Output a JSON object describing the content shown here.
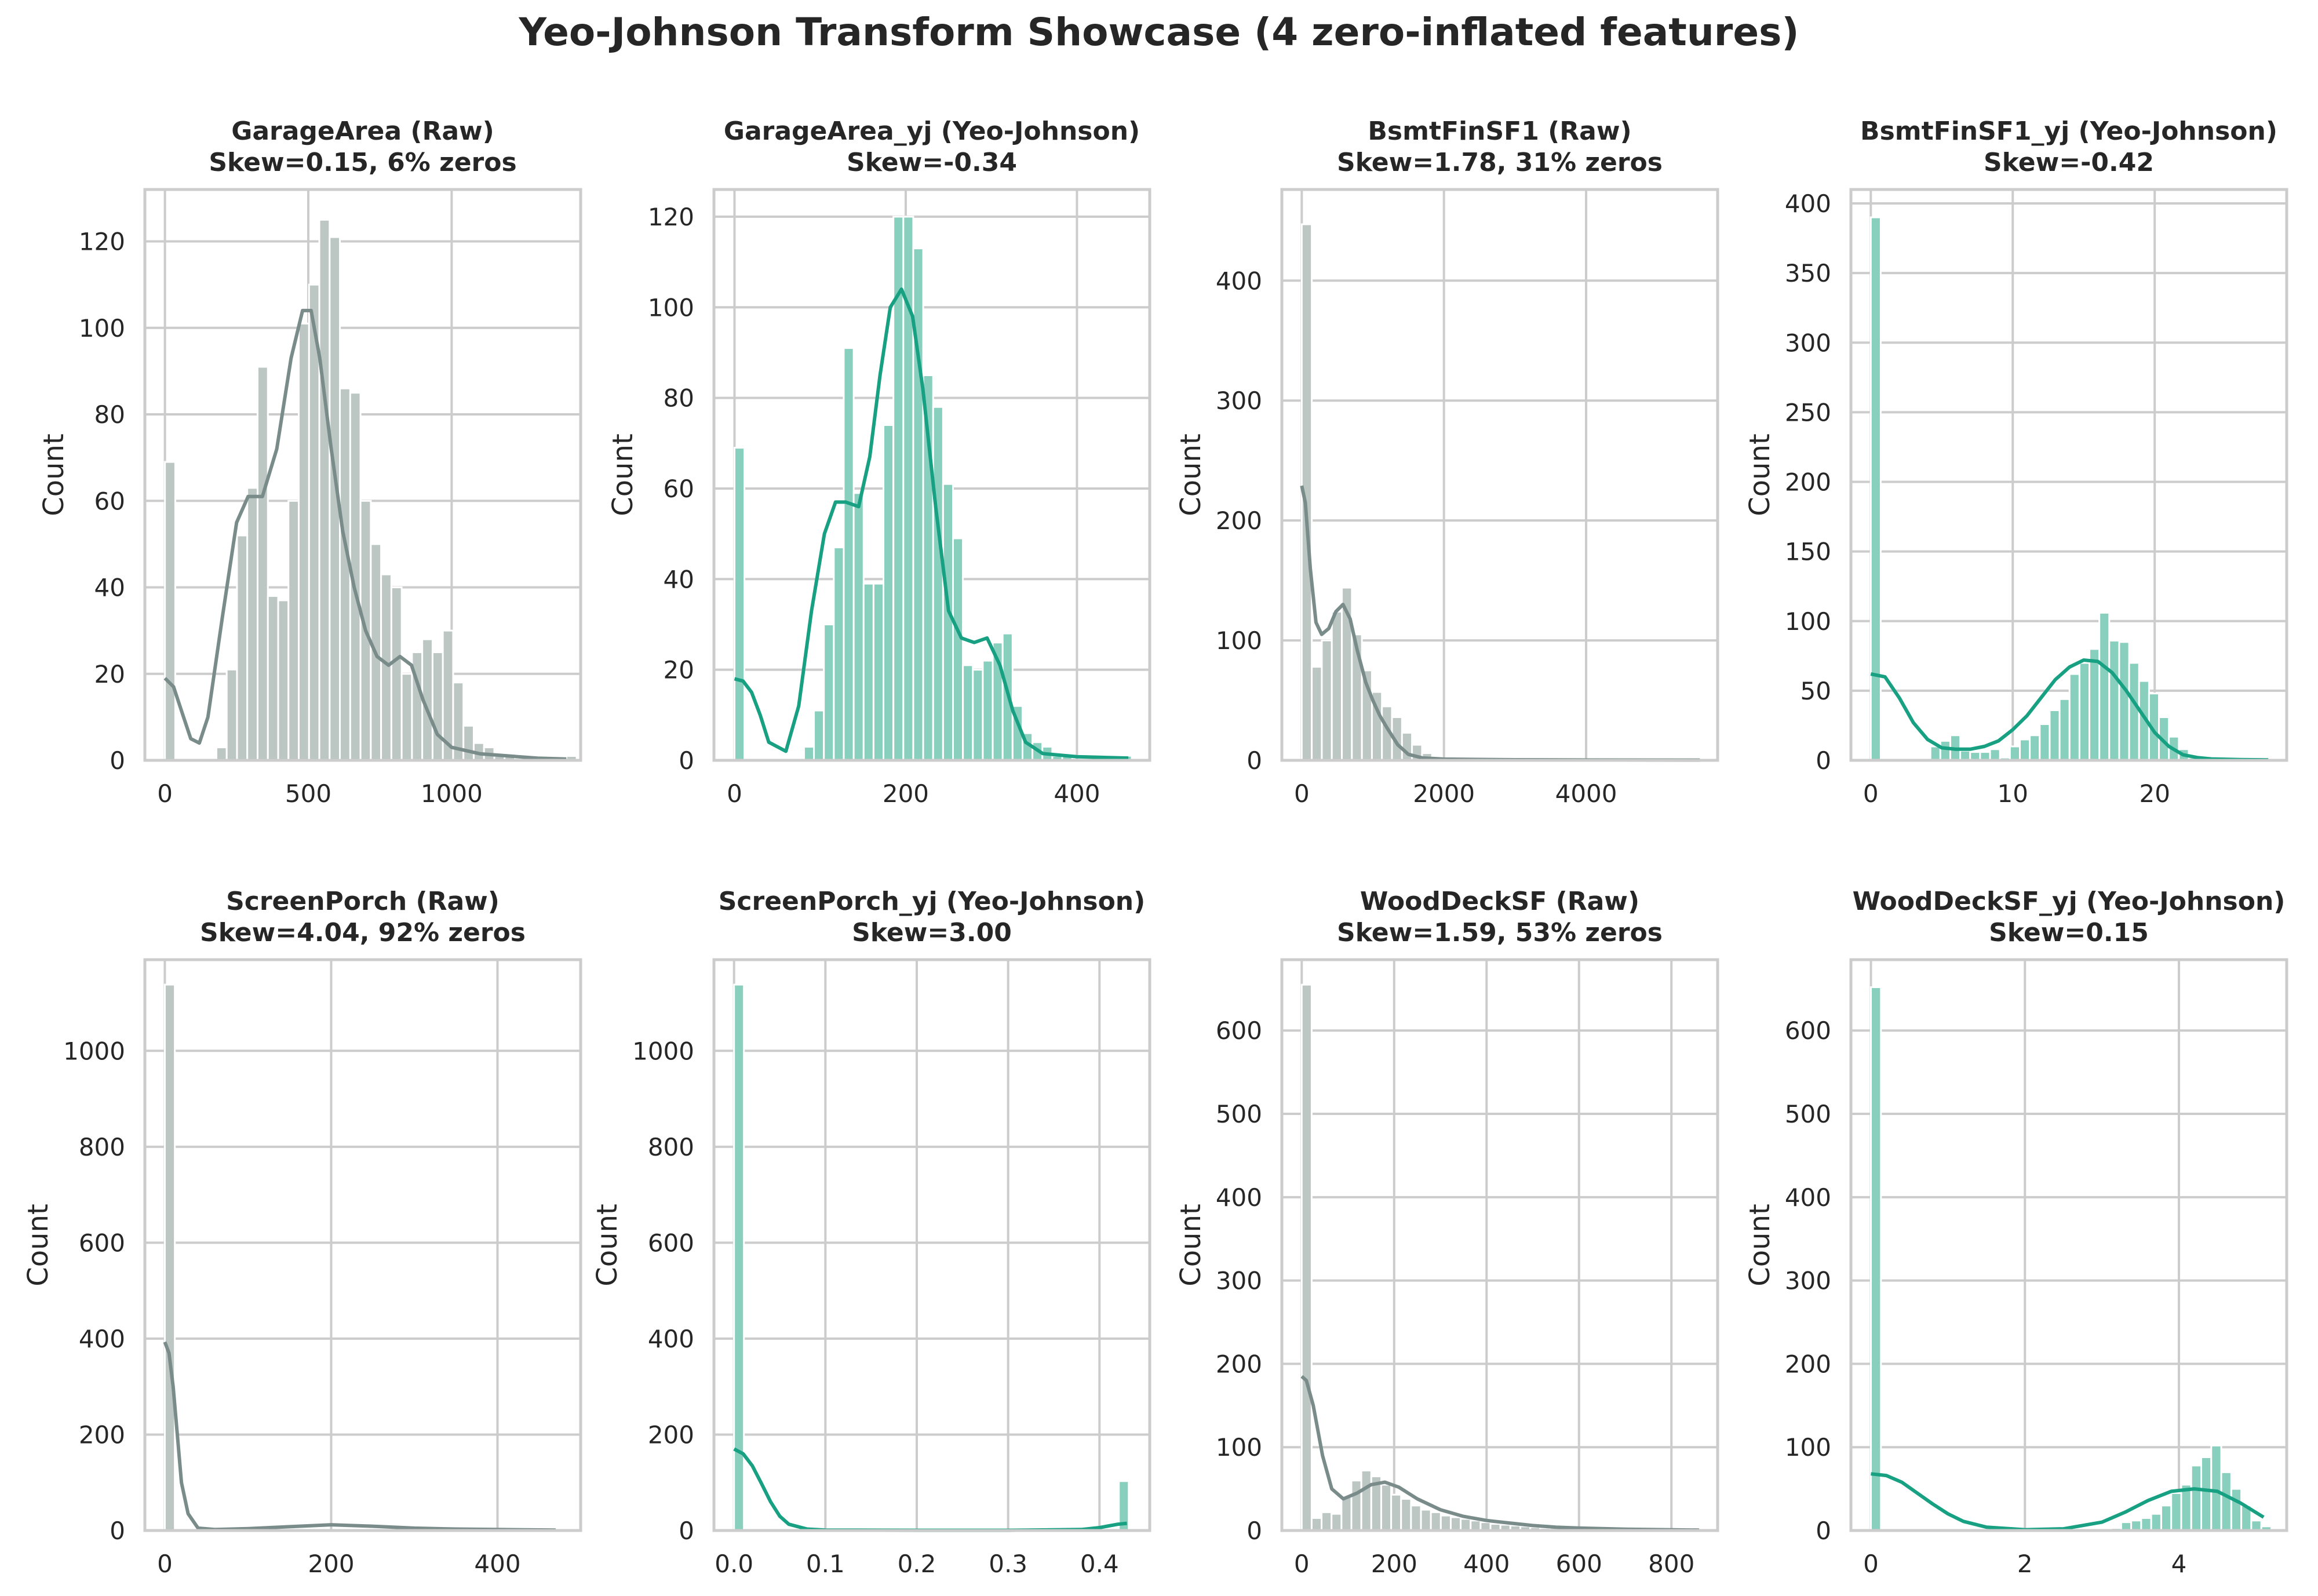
{
  "suptitle": "Yeo-Johnson Transform Showcase (4 zero-inflated features)",
  "colors": {
    "raw_bar": "#bcc6c3",
    "raw_line": "#7a8c8a",
    "yj_bar": "#88cfbd",
    "yj_line": "#17a082",
    "grid": "#cccccc",
    "text": "#262626"
  },
  "chart_data": [
    {
      "type": "bar",
      "title_line1": "GarageArea (Raw)",
      "title_line2": "Skew=0.15, 6% zeros",
      "ylabel": "Count",
      "style": "raw",
      "xlim": [
        -70,
        1450
      ],
      "ylim": [
        0,
        132
      ],
      "xticks": [
        0,
        500,
        1000
      ],
      "yticks": [
        0,
        20,
        40,
        60,
        80,
        100,
        120
      ],
      "bin_start": 0,
      "bin_width": 35.9,
      "values": [
        69,
        0,
        0,
        0,
        0,
        3,
        21,
        52,
        63,
        91,
        38,
        37,
        60,
        101,
        110,
        125,
        121,
        86,
        85,
        60,
        50,
        43,
        40,
        20,
        25,
        28,
        25,
        30,
        18,
        8,
        4,
        3,
        1,
        1,
        0,
        0,
        0,
        0,
        0,
        1
      ],
      "kde": [
        [
          0,
          19
        ],
        [
          30,
          17
        ],
        [
          60,
          11
        ],
        [
          90,
          5
        ],
        [
          120,
          4
        ],
        [
          150,
          10
        ],
        [
          200,
          33
        ],
        [
          250,
          55
        ],
        [
          290,
          61
        ],
        [
          340,
          61
        ],
        [
          390,
          72
        ],
        [
          440,
          93
        ],
        [
          480,
          104
        ],
        [
          510,
          104
        ],
        [
          540,
          93
        ],
        [
          580,
          72
        ],
        [
          620,
          53
        ],
        [
          660,
          40
        ],
        [
          700,
          30
        ],
        [
          740,
          24
        ],
        [
          780,
          22
        ],
        [
          820,
          24
        ],
        [
          860,
          22
        ],
        [
          900,
          14
        ],
        [
          950,
          6
        ],
        [
          1000,
          3
        ],
        [
          1100,
          1.5
        ],
        [
          1200,
          1
        ],
        [
          1300,
          0.5
        ],
        [
          1400,
          0.3
        ]
      ]
    },
    {
      "type": "bar",
      "title_line1": "GarageArea_yj (Yeo-Johnson)",
      "title_line2": "Skew=-0.34",
      "ylabel": "Count",
      "style": "yj",
      "xlim": [
        -24,
        485
      ],
      "ylim": [
        0,
        126
      ],
      "xticks": [
        0,
        200,
        400
      ],
      "yticks": [
        0,
        20,
        40,
        60,
        80,
        100,
        120
      ],
      "bin_start": 0,
      "bin_width": 11.6,
      "values": [
        69,
        0,
        0,
        0,
        0,
        0,
        0,
        3,
        11,
        30,
        47,
        91,
        59,
        39,
        39,
        74,
        120,
        120,
        113,
        85,
        78,
        61,
        49,
        21,
        20,
        22,
        26,
        28,
        12,
        6,
        4,
        3,
        1,
        1,
        0,
        0,
        0,
        0,
        0,
        1
      ],
      "kde": [
        [
          0,
          18
        ],
        [
          10,
          17.5
        ],
        [
          20,
          15
        ],
        [
          30,
          10
        ],
        [
          40,
          4
        ],
        [
          60,
          2
        ],
        [
          75,
          12
        ],
        [
          90,
          33
        ],
        [
          105,
          50
        ],
        [
          118,
          57
        ],
        [
          130,
          57
        ],
        [
          145,
          56
        ],
        [
          158,
          67
        ],
        [
          170,
          85
        ],
        [
          182,
          100
        ],
        [
          195,
          104
        ],
        [
          208,
          98
        ],
        [
          220,
          82
        ],
        [
          235,
          56
        ],
        [
          250,
          33
        ],
        [
          265,
          27
        ],
        [
          280,
          26
        ],
        [
          295,
          27
        ],
        [
          310,
          21
        ],
        [
          325,
          11
        ],
        [
          340,
          4
        ],
        [
          360,
          1.5
        ],
        [
          400,
          0.8
        ],
        [
          460,
          0.5
        ]
      ]
    },
    {
      "type": "bar",
      "title_line1": "BsmtFinSF1 (Raw)",
      "title_line2": "Skew=1.78, 31% zeros",
      "ylabel": "Count",
      "style": "raw",
      "xlim": [
        -280,
        5850
      ],
      "ylim": [
        0,
        476
      ],
      "xticks": [
        0,
        2000,
        4000
      ],
      "yticks": [
        0,
        100,
        200,
        300,
        400
      ],
      "bin_start": 0,
      "bin_width": 141,
      "values": [
        447,
        78,
        100,
        124,
        144,
        105,
        75,
        57,
        45,
        36,
        23,
        13,
        6,
        3,
        1,
        1,
        1,
        0,
        0,
        0,
        0,
        0,
        0,
        0,
        0,
        0,
        0,
        0,
        0,
        0,
        0,
        0,
        0,
        0,
        0,
        0,
        0,
        0,
        0,
        1
      ],
      "kde": [
        [
          0,
          229
        ],
        [
          50,
          215
        ],
        [
          120,
          160
        ],
        [
          200,
          115
        ],
        [
          280,
          105
        ],
        [
          380,
          110
        ],
        [
          480,
          124
        ],
        [
          580,
          130
        ],
        [
          680,
          118
        ],
        [
          780,
          92
        ],
        [
          900,
          65
        ],
        [
          1000,
          50
        ],
        [
          1100,
          37
        ],
        [
          1200,
          27
        ],
        [
          1350,
          13
        ],
        [
          1500,
          5
        ],
        [
          1700,
          2
        ],
        [
          2000,
          1
        ],
        [
          3000,
          0.5
        ],
        [
          4000,
          0.3
        ],
        [
          5600,
          0.2
        ]
      ]
    },
    {
      "type": "bar",
      "title_line1": "BsmtFinSF1_yj (Yeo-Johnson)",
      "title_line2": "Skew=-0.42",
      "ylabel": "Count",
      "style": "yj",
      "xlim": [
        -1.4,
        29.3
      ],
      "ylim": [
        0,
        410
      ],
      "xticks": [
        0,
        10,
        20
      ],
      "yticks": [
        0,
        50,
        100,
        150,
        200,
        250,
        300,
        350,
        400
      ],
      "bin_start": 0,
      "bin_width": 0.7,
      "values": [
        390,
        0,
        0,
        0,
        0,
        0,
        10,
        14,
        18,
        7,
        6,
        6,
        8,
        2,
        10,
        15,
        18,
        26,
        36,
        44,
        62,
        70,
        80,
        106,
        86,
        85,
        70,
        57,
        48,
        31,
        17,
        8,
        2,
        1,
        1,
        1,
        0,
        0,
        0,
        0,
        1
      ],
      "kde": [
        [
          0,
          62
        ],
        [
          1,
          60
        ],
        [
          2,
          45
        ],
        [
          3,
          27
        ],
        [
          4,
          15
        ],
        [
          5,
          9
        ],
        [
          6,
          8
        ],
        [
          7,
          8
        ],
        [
          8,
          10
        ],
        [
          9,
          14
        ],
        [
          10,
          22
        ],
        [
          11,
          32
        ],
        [
          12,
          45
        ],
        [
          13,
          58
        ],
        [
          14,
          67
        ],
        [
          15,
          72
        ],
        [
          16,
          71
        ],
        [
          17,
          63
        ],
        [
          18,
          50
        ],
        [
          19,
          35
        ],
        [
          20,
          20
        ],
        [
          21,
          10
        ],
        [
          22,
          4
        ],
        [
          23,
          2
        ],
        [
          24,
          1
        ],
        [
          26,
          0.5
        ],
        [
          28,
          0.3
        ]
      ]
    },
    {
      "type": "bar",
      "title_line1": "ScreenPorch (Raw)",
      "title_line2": "Skew=4.04, 92% zeros",
      "ylabel": "Count",
      "style": "raw",
      "xlim": [
        -24,
        500
      ],
      "ylim": [
        0,
        1190
      ],
      "xticks": [
        0,
        200,
        400
      ],
      "yticks": [
        0,
        200,
        400,
        600,
        800,
        1000
      ],
      "bin_start": 0,
      "bin_width": 12,
      "values": [
        1138,
        0,
        0,
        0,
        0,
        0,
        0,
        0,
        0,
        0,
        0,
        0,
        0,
        0,
        0,
        0,
        0,
        0,
        0,
        0,
        0,
        0,
        0,
        0,
        0,
        0,
        0,
        0,
        0,
        0,
        0,
        0,
        0,
        0,
        0,
        0,
        0,
        0,
        0,
        0
      ],
      "kde": [
        [
          0,
          393
        ],
        [
          5,
          370
        ],
        [
          10,
          300
        ],
        [
          15,
          200
        ],
        [
          20,
          100
        ],
        [
          28,
          35
        ],
        [
          40,
          5
        ],
        [
          60,
          2
        ],
        [
          100,
          4
        ],
        [
          150,
          8
        ],
        [
          200,
          12
        ],
        [
          250,
          9
        ],
        [
          300,
          5
        ],
        [
          350,
          3
        ],
        [
          400,
          2
        ],
        [
          470,
          1
        ]
      ]
    },
    {
      "type": "bar",
      "title_line1": "ScreenPorch_yj (Yeo-Johnson)",
      "title_line2": "Skew=3.00",
      "ylabel": "Count",
      "style": "yj",
      "xlim": [
        -0.022,
        0.455
      ],
      "ylim": [
        0,
        1190
      ],
      "xticks": [
        0.0,
        0.1,
        0.2,
        0.3,
        0.4
      ],
      "yticks": [
        0,
        200,
        400,
        600,
        800,
        1000
      ],
      "bin_start": 0,
      "bin_width": 0.0108,
      "tick_decimals": 1,
      "values": [
        1138,
        0,
        0,
        0,
        0,
        0,
        0,
        0,
        0,
        0,
        0,
        0,
        0,
        0,
        0,
        0,
        0,
        0,
        0,
        0,
        0,
        0,
        0,
        0,
        0,
        0,
        0,
        0,
        0,
        0,
        0,
        0,
        0,
        0,
        0,
        0,
        0,
        0,
        0,
        103
      ],
      "kde": [
        [
          0,
          170
        ],
        [
          0.01,
          160
        ],
        [
          0.02,
          135
        ],
        [
          0.03,
          98
        ],
        [
          0.04,
          60
        ],
        [
          0.05,
          30
        ],
        [
          0.06,
          13
        ],
        [
          0.08,
          3
        ],
        [
          0.1,
          1
        ],
        [
          0.2,
          0.5
        ],
        [
          0.3,
          0.5
        ],
        [
          0.38,
          2
        ],
        [
          0.4,
          6
        ],
        [
          0.42,
          13
        ],
        [
          0.43,
          15
        ]
      ]
    },
    {
      "type": "bar",
      "title_line1": "WoodDeckSF (Raw)",
      "title_line2": "Skew=1.59, 53% zeros",
      "ylabel": "Count",
      "style": "raw",
      "xlim": [
        -43,
        900
      ],
      "ylim": [
        0,
        685
      ],
      "xticks": [
        0,
        200,
        400,
        600,
        800
      ],
      "yticks": [
        0,
        100,
        200,
        300,
        400,
        500,
        600
      ],
      "bin_start": 0,
      "bin_width": 21.5,
      "values": [
        655,
        15,
        22,
        20,
        40,
        60,
        72,
        65,
        55,
        43,
        38,
        30,
        25,
        22,
        18,
        16,
        14,
        12,
        10,
        8,
        7,
        6,
        5,
        4,
        3,
        3,
        2,
        2,
        2,
        1,
        1,
        1,
        1,
        0,
        0,
        0,
        0,
        0,
        0,
        1
      ],
      "kde": [
        [
          0,
          185
        ],
        [
          10,
          180
        ],
        [
          25,
          150
        ],
        [
          45,
          90
        ],
        [
          65,
          50
        ],
        [
          90,
          38
        ],
        [
          120,
          45
        ],
        [
          150,
          55
        ],
        [
          180,
          58
        ],
        [
          210,
          52
        ],
        [
          250,
          38
        ],
        [
          300,
          25
        ],
        [
          350,
          17
        ],
        [
          400,
          12
        ],
        [
          450,
          9
        ],
        [
          500,
          6
        ],
        [
          550,
          4
        ],
        [
          600,
          3
        ],
        [
          700,
          1.5
        ],
        [
          800,
          0.8
        ],
        [
          860,
          0.5
        ]
      ]
    },
    {
      "type": "bar",
      "title_line1": "WoodDeckSF_yj (Yeo-Johnson)",
      "title_line2": "Skew=0.15",
      "ylabel": "Count",
      "style": "yj",
      "xlim": [
        -0.26,
        5.4
      ],
      "ylim": [
        0,
        685
      ],
      "xticks": [
        0,
        2,
        4
      ],
      "yticks": [
        0,
        100,
        200,
        300,
        400,
        500,
        600
      ],
      "bin_start": 0,
      "bin_width": 0.13,
      "values": [
        652,
        0,
        0,
        0,
        0,
        0,
        0,
        0,
        0,
        0,
        0,
        0,
        0,
        0,
        0,
        0,
        0,
        0,
        0,
        0,
        0,
        0,
        0,
        1,
        3,
        10,
        12,
        15,
        20,
        30,
        45,
        55,
        78,
        88,
        102,
        70,
        50,
        30,
        12,
        5
      ],
      "kde": [
        [
          0,
          68
        ],
        [
          0.2,
          66
        ],
        [
          0.4,
          58
        ],
        [
          0.6,
          45
        ],
        [
          0.8,
          32
        ],
        [
          1.0,
          20
        ],
        [
          1.2,
          11
        ],
        [
          1.5,
          4
        ],
        [
          2.0,
          1
        ],
        [
          2.5,
          2
        ],
        [
          3.0,
          10
        ],
        [
          3.3,
          22
        ],
        [
          3.6,
          36
        ],
        [
          3.9,
          47
        ],
        [
          4.2,
          50
        ],
        [
          4.5,
          47
        ],
        [
          4.8,
          33
        ],
        [
          5.1,
          16
        ]
      ]
    }
  ]
}
